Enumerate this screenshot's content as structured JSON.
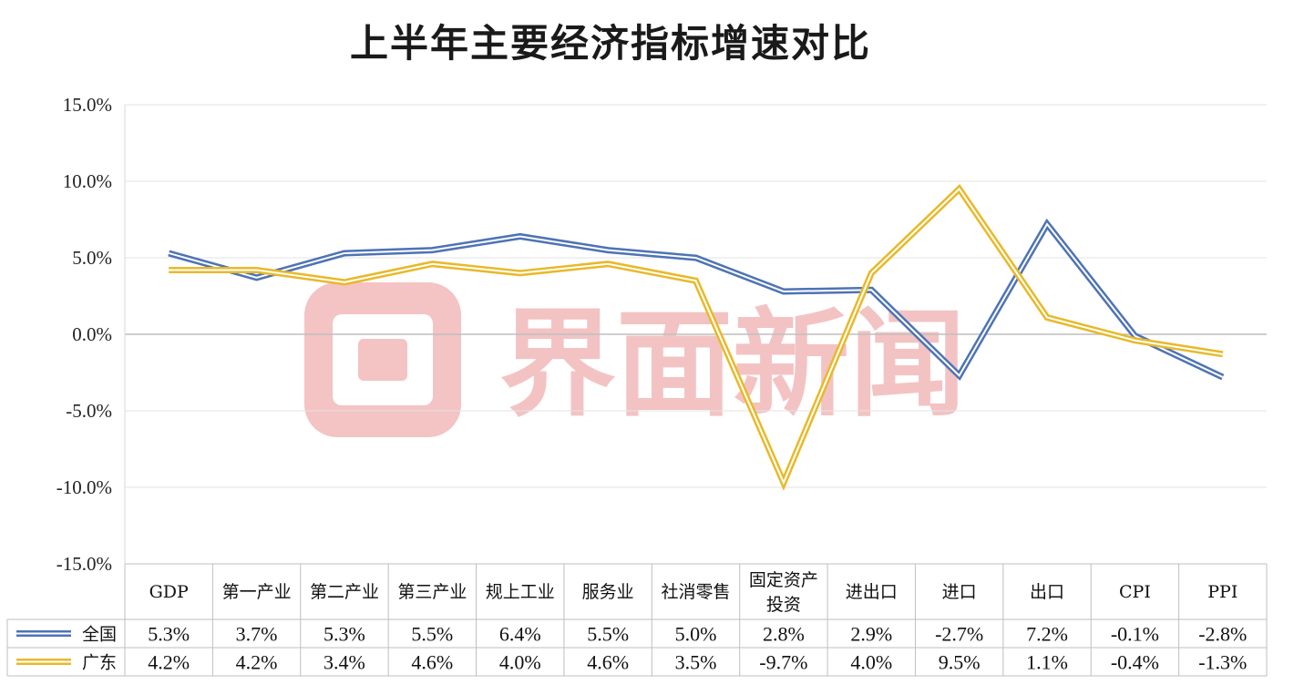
{
  "chart_data": {
    "type": "line",
    "title": "上半年主要经济指标增速对比",
    "categories": [
      [
        "GDP"
      ],
      [
        "第一产业"
      ],
      [
        "第二产业"
      ],
      [
        "第三产业"
      ],
      [
        "规上工业"
      ],
      [
        "服务业"
      ],
      [
        "社消零售"
      ],
      [
        "固定资产",
        "投资"
      ],
      [
        "进出口"
      ],
      [
        "进口"
      ],
      [
        "出口"
      ],
      [
        "CPI"
      ],
      [
        "PPI"
      ]
    ],
    "series": [
      {
        "name": "全国",
        "color": "#4e73b5",
        "values": [
          5.3,
          3.7,
          5.3,
          5.5,
          6.4,
          5.5,
          5.0,
          2.8,
          2.9,
          -2.7,
          7.2,
          -0.1,
          -2.8
        ],
        "labels": [
          "5.3%",
          "3.7%",
          "5.3%",
          "5.5%",
          "6.4%",
          "5.5%",
          "5.0%",
          "2.8%",
          "2.9%",
          "-2.7%",
          "7.2%",
          "-0.1%",
          "-2.8%"
        ]
      },
      {
        "name": "广东",
        "color": "#e8b92a",
        "values": [
          4.2,
          4.2,
          3.4,
          4.6,
          4.0,
          4.6,
          3.5,
          -9.7,
          4.0,
          9.5,
          1.1,
          -0.4,
          -1.3
        ],
        "labels": [
          "4.2%",
          "4.2%",
          "3.4%",
          "4.6%",
          "4.0%",
          "4.6%",
          "3.5%",
          "-9.7%",
          "4.0%",
          "9.5%",
          "1.1%",
          "-0.4%",
          "-1.3%"
        ]
      }
    ],
    "ylim": [
      -15,
      15
    ],
    "yticks": [
      15,
      10,
      5,
      0,
      -5,
      -10,
      -15
    ],
    "ytick_labels": [
      "15.0%",
      "10.0%",
      "5.0%",
      "0.0%",
      "-5.0%",
      "-10.0%",
      "-15.0%"
    ],
    "grid": true,
    "legend": "data-table"
  },
  "watermark": {
    "text": "界面新闻",
    "color": "#f2b9b9"
  }
}
